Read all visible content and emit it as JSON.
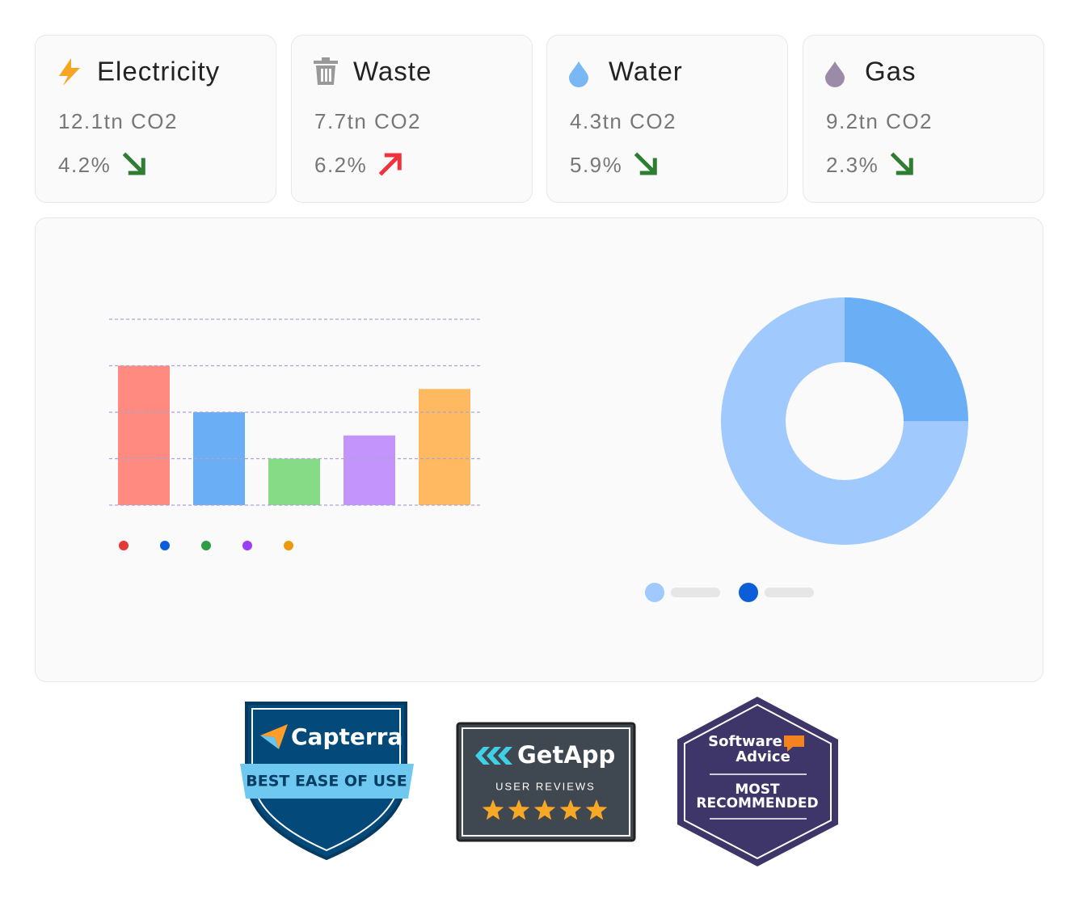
{
  "cards": [
    {
      "title": "Electricity",
      "value": "12.1tn CO2",
      "change": "4.2%",
      "trend": "down"
    },
    {
      "title": "Waste",
      "value": "7.7tn CO2",
      "change": "6.2%",
      "trend": "up"
    },
    {
      "title": "Water",
      "value": "4.3tn CO2",
      "change": "5.9%",
      "trend": "down"
    },
    {
      "title": "Gas",
      "value": "9.2tn CO2",
      "change": "2.3%",
      "trend": "down"
    }
  ],
  "chart_data": [
    {
      "type": "bar",
      "values": [
        3,
        2,
        1,
        1.5,
        2.5
      ],
      "colors": [
        "#ff8a80",
        "#6aaef5",
        "#86dc86",
        "#c395fc",
        "#ffb961"
      ],
      "legend_colors": [
        "#e53935",
        "#0b5ed7",
        "#2e9e44",
        "#9b3ef5",
        "#ec9a0b"
      ],
      "ylim": [
        0,
        4
      ],
      "yticks": [
        0,
        1,
        2,
        3,
        4
      ],
      "grid": true
    },
    {
      "type": "donut",
      "values": [
        25,
        75
      ],
      "colors": [
        "#6aaef5",
        "#a0c9fd"
      ],
      "legend_colors": [
        "#a0c9fd",
        "#0b5ed7"
      ]
    }
  ],
  "badges": {
    "capterra": {
      "name": "Capterra",
      "award": "BEST EASE OF USE"
    },
    "getapp": {
      "name": "GetApp",
      "caption": "USER REVIEWS"
    },
    "software_advice": {
      "name_line1": "Software",
      "name_line2": "Advice",
      "award_line1": "MOST",
      "award_line2": "RECOMMENDED"
    }
  }
}
